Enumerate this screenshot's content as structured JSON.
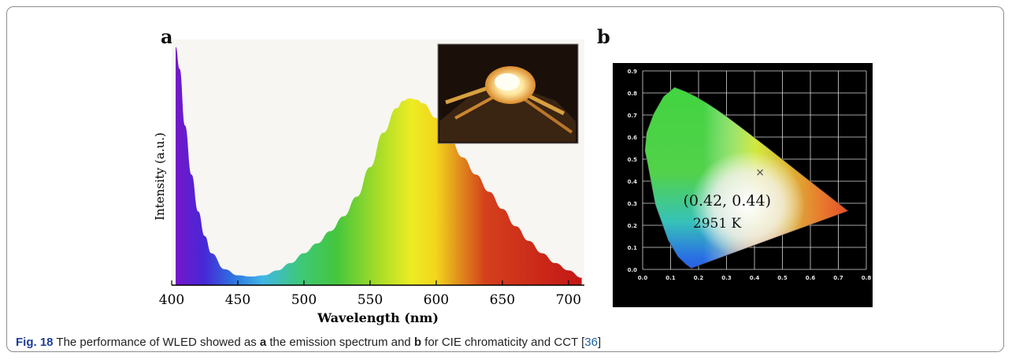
{
  "panel_a_letter": "a",
  "panel_b_letter": "b",
  "caption": {
    "fig_label": "Fig. 18",
    "t1": " The performance of WLED showed as ",
    "b1": "a",
    "t2": " the emission spectrum and ",
    "b2": "b",
    "t3": " for CIE chromaticity and CCT [",
    "ref": "36",
    "t4": "]"
  },
  "chart_data": [
    {
      "type": "area",
      "xlabel": "Wavelength (nm)",
      "ylabel": "Intensity (a.u.)",
      "xlim": [
        400,
        712
      ],
      "ylim": [
        0,
        1
      ],
      "xticks": [
        "400",
        "450",
        "500",
        "550",
        "600",
        "650",
        "700"
      ],
      "x": [
        403,
        406,
        410,
        415,
        420,
        425,
        430,
        440,
        450,
        460,
        470,
        480,
        490,
        500,
        510,
        520,
        530,
        540,
        550,
        560,
        570,
        575,
        580,
        585,
        590,
        600,
        610,
        620,
        630,
        640,
        650,
        660,
        670,
        680,
        690,
        700,
        710
      ],
      "values": [
        0.97,
        0.88,
        0.65,
        0.45,
        0.3,
        0.2,
        0.13,
        0.065,
        0.04,
        0.035,
        0.04,
        0.06,
        0.09,
        0.13,
        0.17,
        0.22,
        0.28,
        0.36,
        0.48,
        0.62,
        0.72,
        0.75,
        0.76,
        0.755,
        0.74,
        0.68,
        0.6,
        0.52,
        0.45,
        0.38,
        0.31,
        0.24,
        0.18,
        0.13,
        0.09,
        0.06,
        0.03
      ],
      "inset": "photo of the glowing WLED"
    },
    {
      "type": "scatter",
      "xlim": [
        0.0,
        0.8
      ],
      "ylim": [
        0.0,
        0.9
      ],
      "xticks": [
        "0.0",
        "0.1",
        "0.2",
        "0.3",
        "0.4",
        "0.5",
        "0.6",
        "0.7",
        "0.8"
      ],
      "yticks": [
        "0.0",
        "0.1",
        "0.2",
        "0.3",
        "0.4",
        "0.5",
        "0.6",
        "0.7",
        "0.8",
        "0.9"
      ],
      "x": [
        0.42
      ],
      "y": [
        0.44
      ],
      "annotations": [
        "(0.42, 0.44)",
        "2951 K"
      ],
      "grid": true
    }
  ]
}
